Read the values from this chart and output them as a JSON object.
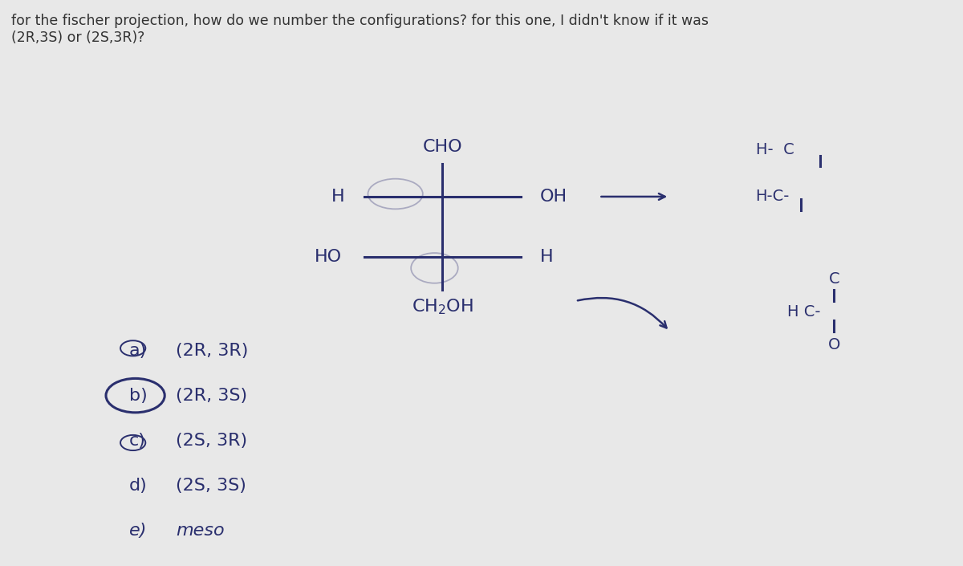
{
  "title_text": "for the fischer projection, how do we number the configurations? for this one, I didn't know if it was\n(2R,3S) or (2S,3R)?",
  "title_fontsize": 12.5,
  "bg_color": "#b8bfc9",
  "outer_bg": "#e8e8e8",
  "choices": [
    "a)",
    "b)",
    "c)",
    "d)",
    "e)"
  ],
  "choice_labels": [
    "(2R, 3R)",
    "(2R, 3S)",
    "(2S, 3R)",
    "(2S, 3S)",
    "meso"
  ],
  "fig_width": 12.0,
  "fig_height": 7.05,
  "ink_color": "#2a2f6e",
  "text_color": "#222244"
}
